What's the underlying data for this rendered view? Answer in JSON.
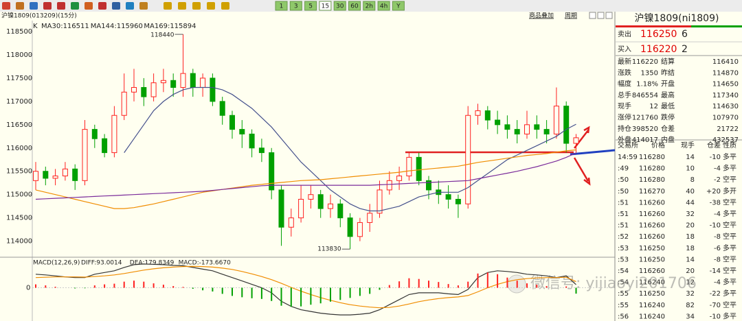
{
  "toolbar": {
    "periods": [
      "1",
      "3",
      "5",
      "15",
      "30",
      "60",
      "2h",
      "4h",
      "Y"
    ],
    "buttons": [
      "商品叠加",
      "周期"
    ]
  },
  "chart_data": [
    {
      "type": "candlestick",
      "title": "沪镍1809(013209)(15分)",
      "kind_label": "K",
      "up_color": "#ff2020",
      "down_color": "#00a000",
      "ylim": [
        113700,
        118750
      ],
      "yticks": [
        114000,
        114500,
        115000,
        115500,
        116000,
        116500,
        117000,
        117500,
        118000,
        118500
      ],
      "open": [
        115300,
        115500,
        115350,
        115400,
        115550,
        115300,
        116400,
        116200,
        115900,
        116700,
        117200,
        117300,
        117100,
        117400,
        117450,
        117300,
        117600,
        117300,
        117500,
        117000,
        116700,
        116400,
        116300,
        116000,
        115900,
        115100,
        114300,
        114500,
        114900,
        115000,
        114700,
        114800,
        114500,
        114100,
        114400,
        114600,
        115100,
        115300,
        115400,
        115800,
        115300,
        115100,
        115000,
        114900,
        114800,
        116700,
        116800,
        116600,
        116500,
        116400,
        116300,
        116500,
        116400,
        116300,
        116900,
        116100
      ],
      "high": [
        115700,
        115600,
        115550,
        115700,
        115650,
        116600,
        116500,
        116300,
        116900,
        117600,
        117700,
        117500,
        117600,
        117700,
        117600,
        118440,
        117700,
        117600,
        117600,
        117100,
        116800,
        116600,
        116400,
        116200,
        116000,
        115200,
        114700,
        115200,
        115200,
        115100,
        115000,
        114900,
        114600,
        114500,
        114800,
        115300,
        115500,
        115600,
        115900,
        115900,
        115400,
        115300,
        115200,
        115000,
        116900,
        116950,
        116900,
        116800,
        116700,
        116600,
        116800,
        116700,
        116600,
        117300,
        117000,
        116300
      ],
      "low": [
        115100,
        115200,
        115200,
        115300,
        115100,
        115200,
        116000,
        115800,
        115800,
        116600,
        117000,
        116900,
        117000,
        117200,
        117100,
        117100,
        117100,
        117100,
        116900,
        116500,
        116200,
        116000,
        115800,
        115700,
        114900,
        113900,
        114100,
        114400,
        114700,
        114500,
        114500,
        114300,
        113830,
        114000,
        114200,
        114500,
        115000,
        115100,
        115300,
        115200,
        114900,
        114800,
        114700,
        114500,
        114700,
        116500,
        116400,
        116300,
        116200,
        116100,
        116200,
        116200,
        116100,
        116200,
        115900,
        115900
      ],
      "close": [
        115500,
        115350,
        115400,
        115550,
        115300,
        116400,
        116200,
        115900,
        116700,
        117200,
        117300,
        117100,
        117400,
        117450,
        117300,
        117600,
        117300,
        117500,
        117000,
        116700,
        116400,
        116300,
        116000,
        115900,
        115100,
        114300,
        114500,
        114900,
        115000,
        114700,
        114800,
        114500,
        114100,
        114400,
        114600,
        115100,
        115300,
        115400,
        115800,
        115300,
        115100,
        115000,
        114900,
        114800,
        116700,
        116800,
        116600,
        116500,
        116400,
        116300,
        116500,
        116400,
        116300,
        116900,
        116100,
        116220
      ],
      "series": [
        {
          "name": "MA30:116511",
          "color": "#44508c",
          "values": [
            null,
            null,
            null,
            null,
            null,
            null,
            null,
            null,
            null,
            115900,
            116200,
            116500,
            116800,
            117000,
            117150,
            117250,
            117300,
            117300,
            117300,
            117250,
            117150,
            117000,
            116850,
            116650,
            116450,
            116200,
            115950,
            115700,
            115500,
            115300,
            115100,
            114950,
            114800,
            114700,
            114650,
            114650,
            114700,
            114750,
            114850,
            114950,
            115000,
            115050,
            115050,
            115050,
            115150,
            115300,
            115450,
            115600,
            115750,
            115850,
            115950,
            116050,
            116150,
            116250,
            116400,
            116511
          ]
        },
        {
          "name": "MA144:115960",
          "color": "#f08c00",
          "values": [
            115100,
            115050,
            115000,
            114950,
            114900,
            114850,
            114800,
            114750,
            114700,
            114700,
            114720,
            114760,
            114800,
            114850,
            114900,
            114950,
            115000,
            115050,
            115080,
            115110,
            115140,
            115170,
            115200,
            115220,
            115240,
            115260,
            115280,
            115300,
            115310,
            115320,
            115340,
            115360,
            115380,
            115400,
            115420,
            115440,
            115460,
            115480,
            115510,
            115530,
            115550,
            115570,
            115590,
            115610,
            115650,
            115690,
            115720,
            115750,
            115780,
            115810,
            115840,
            115860,
            115880,
            115910,
            115940,
            115960
          ]
        },
        {
          "name": "MA169:115894",
          "color": "#7a2a9a",
          "values": [
            114900,
            114910,
            114920,
            114930,
            114940,
            114950,
            114960,
            114970,
            114980,
            114990,
            115000,
            115010,
            115020,
            115030,
            115040,
            115050,
            115060,
            115070,
            115090,
            115110,
            115130,
            115150,
            115170,
            115190,
            115200,
            115200,
            115200,
            115200,
            115200,
            115200,
            115200,
            115200,
            115200,
            115200,
            115200,
            115210,
            115220,
            115230,
            115240,
            115250,
            115260,
            115270,
            115280,
            115290,
            115300,
            115340,
            115380,
            115420,
            115460,
            115500,
            115550,
            115600,
            115660,
            115720,
            115800,
            115894
          ]
        }
      ],
      "annotations": [
        118440,
        113830
      ]
    },
    {
      "type": "macd",
      "title": "MACD(12,26,9)",
      "ylim": [
        -900,
        800
      ],
      "yticks": [
        0
      ],
      "pos_color": "#ff2020",
      "neg_color": "#00a000",
      "series": [
        {
          "name": "DIFF:93.0014",
          "color": "#333333",
          "values": [
            400,
            380,
            350,
            320,
            300,
            300,
            400,
            450,
            500,
            600,
            680,
            700,
            690,
            680,
            660,
            650,
            600,
            550,
            500,
            400,
            300,
            200,
            100,
            0,
            -150,
            -400,
            -550,
            -650,
            -700,
            -750,
            -780,
            -800,
            -800,
            -780,
            -750,
            -650,
            -500,
            -350,
            -200,
            -150,
            -150,
            -150,
            -180,
            -200,
            -50,
            300,
            450,
            500,
            480,
            450,
            400,
            380,
            350,
            300,
            350,
            93.0014
          ]
        },
        {
          "name": "DEA:179.8349",
          "color": "#f08c00",
          "values": [
            300,
            310,
            320,
            320,
            320,
            315,
            330,
            350,
            380,
            420,
            470,
            520,
            560,
            590,
            610,
            625,
            630,
            625,
            610,
            580,
            540,
            480,
            410,
            330,
            240,
            130,
            10,
            -100,
            -200,
            -290,
            -370,
            -440,
            -500,
            -540,
            -570,
            -590,
            -580,
            -540,
            -480,
            -410,
            -360,
            -320,
            -290,
            -270,
            -230,
            -120,
            0,
            100,
            180,
            240,
            270,
            290,
            300,
            300,
            310,
            179.8349
          ]
        },
        {
          "name": "MACD:-173.6670",
          "color": "#6a2a8a",
          "values": [
            100,
            70,
            30,
            0,
            -20,
            -15,
            70,
            100,
            120,
            180,
            210,
            180,
            130,
            90,
            50,
            25,
            -30,
            -75,
            -110,
            -180,
            -240,
            -280,
            -310,
            -330,
            -390,
            -530,
            -560,
            -550,
            -500,
            -460,
            -410,
            -360,
            -300,
            -240,
            -180,
            -60,
            80,
            190,
            280,
            260,
            210,
            170,
            110,
            70,
            180,
            420,
            450,
            400,
            300,
            210,
            130,
            90,
            50,
            0,
            40,
            -173.667
          ]
        }
      ]
    }
  ],
  "quote_panel": {
    "contract": "沪镍1809(ni1809)",
    "ask": {
      "label": "卖出",
      "price": 116250,
      "volume": 6
    },
    "bid": {
      "label": "买入",
      "price": 116220,
      "volume": 2
    },
    "rows": [
      [
        "最新",
        "116220",
        "结算",
        "116410"
      ],
      [
        "涨跌",
        "1350",
        "昨结",
        "114870"
      ],
      [
        "幅度",
        "1.18%",
        "开盘",
        "114650"
      ],
      [
        "总手",
        "846554",
        "最高",
        "117340"
      ],
      [
        "现手",
        "12",
        "最低",
        "114630"
      ],
      [
        "涨停",
        "121760",
        "跌停",
        "107970"
      ],
      [
        "持仓",
        "398520",
        "仓差",
        "21722"
      ],
      [
        "外盘",
        "414017",
        "内盘",
        "432537"
      ]
    ],
    "trade_header": [
      "交易所",
      "价格",
      "现手",
      "仓差",
      "性质"
    ],
    "trades": [
      [
        "14:59",
        "116280",
        "14",
        "-10",
        "多平"
      ],
      [
        ":49",
        "116280",
        "10",
        "-4",
        "多平"
      ],
      [
        ":50",
        "116280",
        "8",
        "-2",
        "空平"
      ],
      [
        ":50",
        "116270",
        "40",
        "+20",
        "多开"
      ],
      [
        ":51",
        "116260",
        "44",
        "-38",
        "空平"
      ],
      [
        ":51",
        "116260",
        "32",
        "-4",
        "多平"
      ],
      [
        ":51",
        "116260",
        "20",
        "-10",
        "空平"
      ],
      [
        ":52",
        "116260",
        "18",
        "-8",
        "空平"
      ],
      [
        ":53",
        "116250",
        "18",
        "-6",
        "多平"
      ],
      [
        ":53",
        "116250",
        "14",
        "-8",
        "空平"
      ],
      [
        ":54",
        "116260",
        "20",
        "-14",
        "空平"
      ],
      [
        ":54",
        "116240",
        "12",
        "-4",
        "多平"
      ],
      [
        ":55",
        "116250",
        "32",
        "-22",
        "多平"
      ],
      [
        ":55",
        "116240",
        "82",
        "-70",
        "空平"
      ],
      [
        ":56",
        "116240",
        "34",
        "-10",
        "多平"
      ]
    ]
  },
  "watermark": "微信号: yijiaoyi201706"
}
